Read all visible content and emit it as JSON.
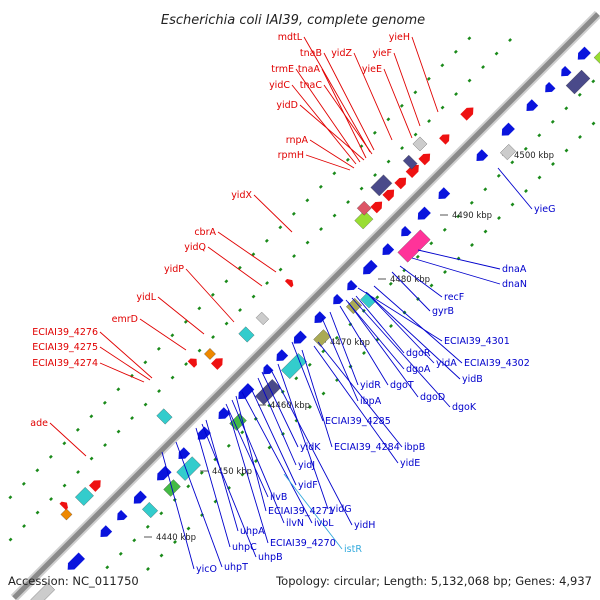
{
  "title": "Escherichia coli IAI39, complete genome",
  "accession": "Accession: NC_011750",
  "summary": "Topology: circular; Length: 5,132,068 bp; Genes: 4,937",
  "colors": {
    "forward_label": "#e00000",
    "reverse_label": "#0000cc",
    "rna_label": "#33aadd",
    "forward_gene": "#ee1111",
    "reverse_gene": "#0a14dd",
    "backbone": "#8a8a8a",
    "cds_dot": "#1a8a1a",
    "cyan_feature": "#33cccc",
    "pink_feature": "#ff3399",
    "purple_feature": "#4a4a8a",
    "green_feature": "#99dd33",
    "olive_feature": "#aaaa55"
  },
  "ticks": [
    "4440 kbp",
    "4450 kbp",
    "4460 kbp",
    "4470 kbp",
    "4480 kbp",
    "4490 kbp",
    "4500 kbp"
  ],
  "forward_labels": [
    "mdtL",
    "tnaB",
    "yidZ",
    "yieH",
    "yieF",
    "yieE",
    "trmE",
    "tnaA",
    "tnaC",
    "yidC",
    "yidD",
    "rnpA",
    "rpmH",
    "yidX",
    "cbrA",
    "yidQ",
    "yidP",
    "yidL",
    "emrD",
    "ECIAI39_4276",
    "ECIAI39_4275",
    "ECIAI39_4274",
    "ade"
  ],
  "reverse_labels": [
    "yieG",
    "dnaA",
    "dnaN",
    "recF",
    "gyrB",
    "ECIAI39_4301",
    "dgoR",
    "yidA",
    "ECIAI39_4302",
    "dgoA",
    "yidB",
    "yidR",
    "dgoT",
    "ibpA",
    "dgoD",
    "dgoK",
    "ECIAI39_4285",
    "yidK",
    "ECIAI39_4284",
    "ibpB",
    "yidE",
    "yidJ",
    "yidF",
    "ilvB",
    "yidG",
    "ECIAI39_4271",
    "ilvN",
    "ivbL",
    "yidH",
    "uhpA",
    "ECIAI39_4270",
    "uhpC",
    "uhpB",
    "yicO",
    "uhpT"
  ],
  "rna_labels": [
    "istR"
  ]
}
